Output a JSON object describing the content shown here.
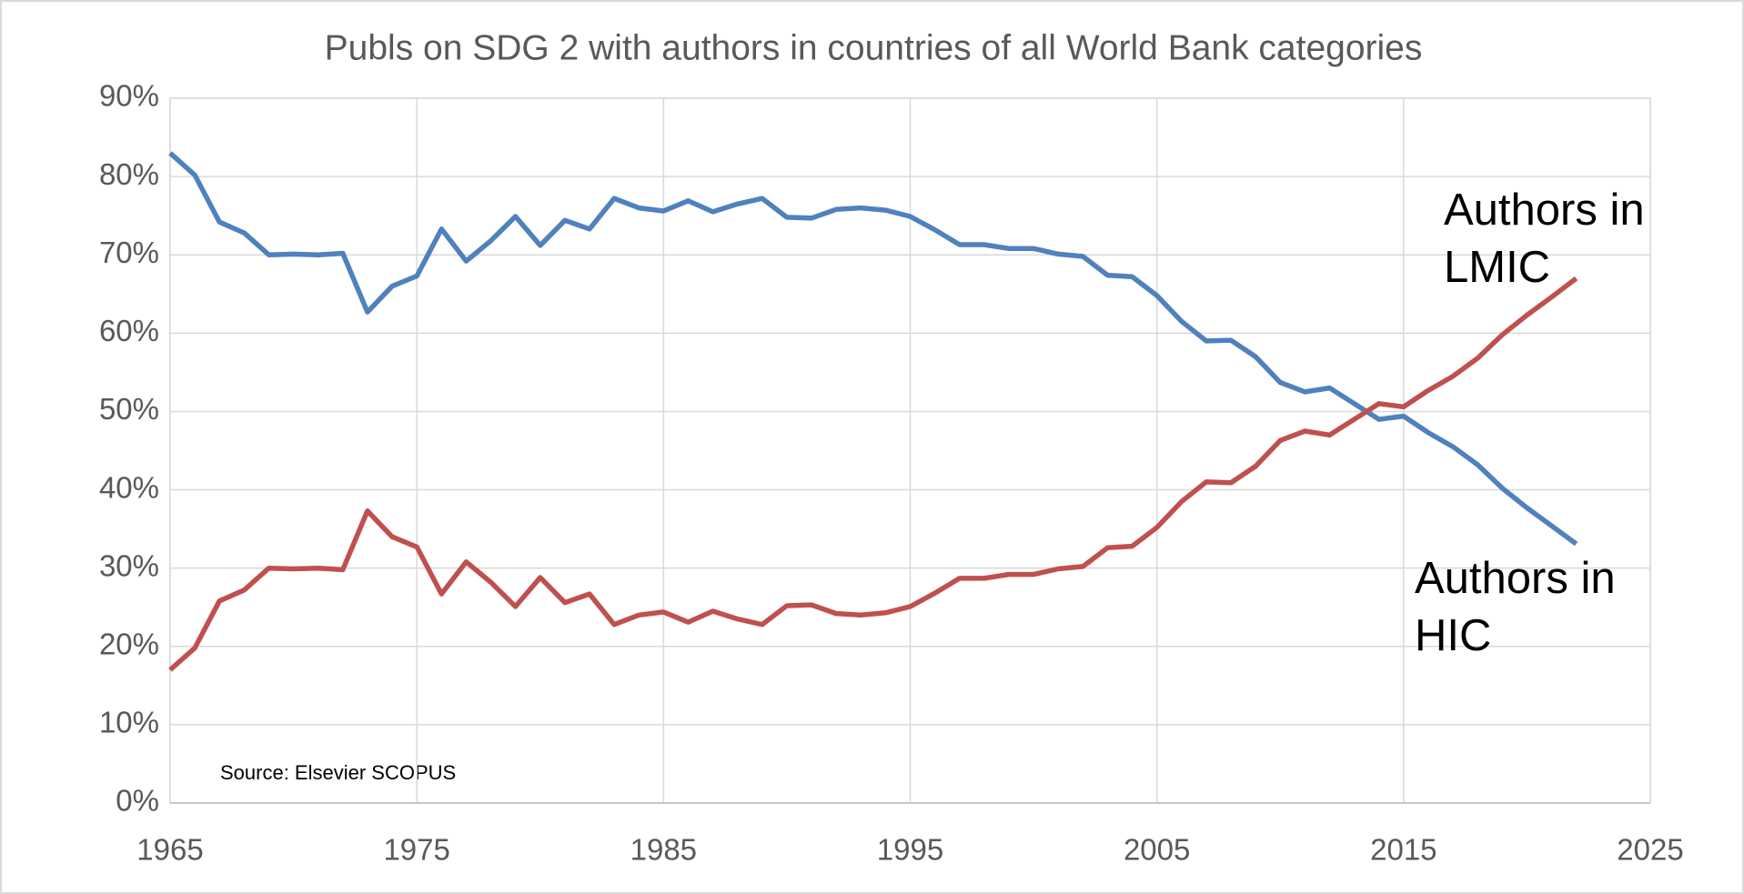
{
  "chart_data": {
    "type": "line",
    "title": "Publs on SDG 2 with authors in countries of all World Bank categories",
    "x": [
      1965,
      1966,
      1967,
      1968,
      1969,
      1970,
      1971,
      1972,
      1973,
      1974,
      1975,
      1976,
      1977,
      1978,
      1979,
      1980,
      1981,
      1982,
      1983,
      1984,
      1985,
      1986,
      1987,
      1988,
      1989,
      1990,
      1991,
      1992,
      1993,
      1994,
      1995,
      1996,
      1997,
      1998,
      1999,
      2000,
      2001,
      2002,
      2003,
      2004,
      2005,
      2006,
      2007,
      2008,
      2009,
      2010,
      2011,
      2012,
      2013,
      2014,
      2015,
      2016,
      2017,
      2018,
      2019,
      2020,
      2021,
      2022
    ],
    "series": [
      {
        "name": "Authors in HIC",
        "color": "#4f81bd",
        "values": [
          83,
          80.2,
          74.2,
          72.8,
          70,
          70.1,
          70,
          70.2,
          62.7,
          66,
          67.3,
          73.3,
          69.2,
          71.8,
          74.9,
          71.2,
          74.4,
          73.3,
          77.2,
          76,
          75.6,
          76.9,
          75.5,
          76.5,
          77.2,
          74.8,
          74.7,
          75.8,
          76,
          75.7,
          74.9,
          73.2,
          71.3,
          71.3,
          70.8,
          70.8,
          70.1,
          69.8,
          67.4,
          67.2,
          64.8,
          61.5,
          59,
          59.1,
          57,
          53.7,
          52.5,
          53,
          51,
          49,
          49.4,
          47.3,
          45.5,
          43.2,
          40.2,
          37.7,
          35.4,
          33.1
        ]
      },
      {
        "name": "Authors in LMIC",
        "color": "#c0504d",
        "values": [
          17,
          19.8,
          25.8,
          27.2,
          30,
          29.9,
          30,
          29.8,
          37.3,
          34,
          32.7,
          26.7,
          30.8,
          28.2,
          25.1,
          28.8,
          25.6,
          26.7,
          22.8,
          24,
          24.4,
          23.1,
          24.5,
          23.5,
          22.8,
          25.2,
          25.3,
          24.2,
          24,
          24.3,
          25.1,
          26.8,
          28.7,
          28.7,
          29.2,
          29.2,
          29.9,
          30.2,
          32.6,
          32.8,
          35.2,
          38.5,
          41,
          40.9,
          43,
          46.3,
          47.5,
          47,
          49,
          51,
          50.6,
          52.7,
          54.5,
          56.8,
          59.8,
          62.3,
          64.6,
          67
        ]
      }
    ],
    "annotation": "Source: Elsevier SCOPUS",
    "xlim": [
      1965,
      2025
    ],
    "xticks": [
      1965,
      1975,
      1985,
      1995,
      2005,
      2015,
      2025
    ],
    "ylim": [
      0,
      90
    ],
    "yticks": [
      {
        "value": 0,
        "label": "0%"
      },
      {
        "value": 10,
        "label": "10%"
      },
      {
        "value": 20,
        "label": "20%"
      },
      {
        "value": 30,
        "label": "30%"
      },
      {
        "value": 40,
        "label": "40%"
      },
      {
        "value": 50,
        "label": "50%"
      },
      {
        "value": 60,
        "label": "60%"
      },
      {
        "value": 70,
        "label": "70%"
      },
      {
        "value": 80,
        "label": "80%"
      },
      {
        "value": 90,
        "label": "90%"
      }
    ],
    "grid": true
  }
}
